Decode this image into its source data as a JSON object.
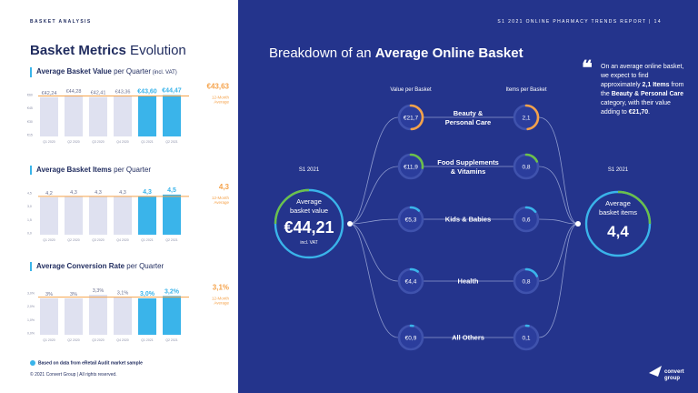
{
  "header": {
    "section": "BASKET ANALYSIS",
    "report": "S1 2021 ONLINE PHARMACY TRENDS REPORT  |  14"
  },
  "left": {
    "title_bold": "Basket Metrics",
    "title_rest": " Evolution",
    "value": {
      "label_bold": "Average Basket Value",
      "label_rest": " per Quarter",
      "label_small": " (incl. VAT)",
      "categories": [
        "Q1 2020",
        "Q2 2020",
        "Q3 2020",
        "Q4 2020",
        "Q1 2021",
        "Q2 2021"
      ],
      "values": [
        42.24,
        44.28,
        42.41,
        43.36,
        43.6,
        44.47
      ],
      "labels": [
        "€42,24",
        "€44,28",
        "€42,41",
        "€43,36",
        "€43,60",
        "€44,47"
      ],
      "y_ticks": [
        "€60",
        "€45",
        "€30",
        "€15"
      ],
      "avg_label": "€43,63",
      "avg_value": 43.63,
      "avg_note": [
        "12-Month",
        "Average"
      ]
    },
    "items": {
      "label_bold": "Average Basket Items",
      "label_rest": " per Quarter",
      "categories": [
        "Q1 2020",
        "Q2 2020",
        "Q3 2020",
        "Q4 2020",
        "Q1 2021",
        "Q2 2021"
      ],
      "values": [
        4.2,
        4.3,
        4.3,
        4.3,
        4.3,
        4.5
      ],
      "labels": [
        "4,2",
        "4,3",
        "4,3",
        "4,3",
        "4,3",
        "4,5"
      ],
      "y_ticks": [
        "4,5",
        "3,0",
        "1,5",
        "0,0"
      ],
      "avg_label": "4,3",
      "avg_value": 4.3,
      "avg_note": [
        "12-Month",
        "Average"
      ]
    },
    "conv": {
      "label_bold": "Average Conversion Rate",
      "label_rest": " per Quarter",
      "categories": [
        "Q1 2020",
        "Q2 2020",
        "Q3 2020",
        "Q4 2020",
        "Q1 2021",
        "Q2 2021"
      ],
      "values": [
        3.0,
        3.0,
        3.3,
        3.1,
        3.0,
        3.2
      ],
      "labels": [
        "3%",
        "3%",
        "3,3%",
        "3,1%",
        "3,0%",
        "3,2%"
      ],
      "y_ticks": [
        "3,0%",
        "2,0%",
        "1,0%",
        "0,0%"
      ],
      "avg_label": "3,1%",
      "avg_value": 3.1,
      "avg_note": [
        "12-Month",
        "Average"
      ]
    },
    "note": "Based on data from eRetail Audit market sample",
    "copyright": "© 2021 Convert Group  |  All rights reserved."
  },
  "right": {
    "title_rest": "Breakdown of an ",
    "title_bold": "Average Online Basket",
    "col_value": "Value per Basket",
    "col_items": "Items per Basket",
    "period_left": "S1 2021",
    "period_right": "S1 2021",
    "avg_value": {
      "label": [
        "Average",
        "basket value"
      ],
      "value": "€44,21",
      "note": "incl. VAT"
    },
    "avg_items": {
      "label": [
        "Average",
        "basket items"
      ],
      "value": "4,4"
    },
    "categories": [
      {
        "name": [
          "Beauty &",
          "Personal Care"
        ],
        "value": "€21,7",
        "items": "2,1",
        "value_share": 0.49,
        "items_share": 0.48
      },
      {
        "name": [
          "Food Supplements",
          "& Vitamins"
        ],
        "value": "€11,9",
        "items": "0,8",
        "value_share": 0.27,
        "items_share": 0.18
      },
      {
        "name": [
          "Kids & Babies"
        ],
        "value": "€5,3",
        "items": "0,6",
        "value_share": 0.12,
        "items_share": 0.14
      },
      {
        "name": [
          "Health"
        ],
        "value": "€4,4",
        "items": "0,8",
        "value_share": 0.1,
        "items_share": 0.18
      },
      {
        "name": [
          "All Others"
        ],
        "value": "€0,9",
        "items": "0,1",
        "value_share": 0.02,
        "items_share": 0.02
      }
    ],
    "quote": {
      "pre": "On an average online basket, we expect to find approximately ",
      "b1": "2,1 Items",
      "mid1": " from the ",
      "b2": "Beauty & Personal Care",
      "mid2": " category, with their value adding to ",
      "b3": "€21,70",
      "post": "."
    },
    "logo": [
      "convert",
      "group"
    ],
    "colors": {
      "bg": "#24348c",
      "orange": "#f5a24a",
      "green": "#6cc04a",
      "cyan": "#3ab4ea"
    }
  }
}
